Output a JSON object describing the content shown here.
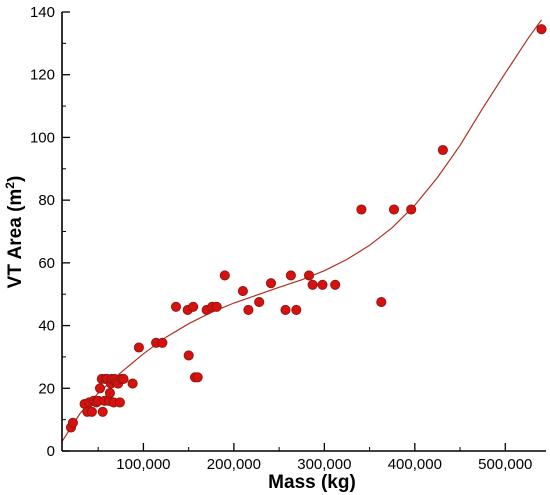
{
  "chart_data": {
    "type": "scatter",
    "xlabel": "Mass (kg)",
    "ylabel_main": "VT Area (m",
    "ylabel_sup": "2",
    "ylabel_close": ")",
    "xlim": [
      10000,
      545000
    ],
    "ylim": [
      0,
      140
    ],
    "xticks": [
      100000,
      200000,
      300000,
      400000,
      500000
    ],
    "xtick_labels": [
      "100,000",
      "200,000",
      "300,000",
      "400,000",
      "500,000"
    ],
    "yticks": [
      0,
      20,
      40,
      60,
      80,
      100,
      120,
      140
    ],
    "ytick_labels": [
      "0",
      "20",
      "40",
      "60",
      "80",
      "100",
      "120",
      "140"
    ],
    "grid": false,
    "colors": {
      "point_fill": "#d81010",
      "point_edge": "#8a1a10",
      "trend_line": "#b03020"
    },
    "series": [
      {
        "type": "scatter",
        "points": [
          [
            20000,
            7.5
          ],
          [
            22000,
            9
          ],
          [
            35000,
            15
          ],
          [
            38000,
            12.5
          ],
          [
            40000,
            15.5
          ],
          [
            43000,
            12.5
          ],
          [
            45000,
            16
          ],
          [
            48000,
            15.5
          ],
          [
            50000,
            16
          ],
          [
            52000,
            20
          ],
          [
            54000,
            23
          ],
          [
            55000,
            12.5
          ],
          [
            57000,
            16
          ],
          [
            58000,
            23
          ],
          [
            60000,
            23
          ],
          [
            62000,
            16
          ],
          [
            63000,
            18.5
          ],
          [
            64000,
            21.5
          ],
          [
            65000,
            23
          ],
          [
            67000,
            15.5
          ],
          [
            68000,
            23
          ],
          [
            70000,
            22
          ],
          [
            72000,
            21.5
          ],
          [
            74000,
            15.5
          ],
          [
            76000,
            23
          ],
          [
            78000,
            23
          ],
          [
            88000,
            21.5
          ],
          [
            95000,
            33
          ],
          [
            114000,
            34.5
          ],
          [
            121000,
            34.5
          ],
          [
            136000,
            46
          ],
          [
            149000,
            45
          ],
          [
            150000,
            30.5
          ],
          [
            155000,
            46
          ],
          [
            157000,
            23.5
          ],
          [
            160000,
            23.5
          ],
          [
            170000,
            45
          ],
          [
            176000,
            46
          ],
          [
            181000,
            46
          ],
          [
            190000,
            56
          ],
          [
            210000,
            51
          ],
          [
            216000,
            45
          ],
          [
            228000,
            47.5
          ],
          [
            241000,
            53.5
          ],
          [
            257000,
            45
          ],
          [
            263000,
            56
          ],
          [
            269000,
            45
          ],
          [
            283000,
            56
          ],
          [
            287000,
            53
          ],
          [
            298000,
            53
          ],
          [
            312000,
            53
          ],
          [
            341000,
            77
          ],
          [
            363000,
            47.5
          ],
          [
            377000,
            77
          ],
          [
            396000,
            77
          ],
          [
            431000,
            96
          ],
          [
            540000,
            134.5
          ]
        ]
      },
      {
        "type": "line",
        "points": [
          [
            10000,
            3
          ],
          [
            30000,
            12
          ],
          [
            50000,
            18.5
          ],
          [
            75000,
            25
          ],
          [
            100000,
            31
          ],
          [
            125000,
            36.3
          ],
          [
            150000,
            40.6
          ],
          [
            175000,
            44.2
          ],
          [
            200000,
            47.2
          ],
          [
            225000,
            49.7
          ],
          [
            250000,
            52.2
          ],
          [
            275000,
            54.6
          ],
          [
            300000,
            57.5
          ],
          [
            325000,
            61.1
          ],
          [
            350000,
            65.6
          ],
          [
            375000,
            71.2
          ],
          [
            400000,
            78.4
          ],
          [
            425000,
            87.2
          ],
          [
            450000,
            97.5
          ],
          [
            475000,
            109.3
          ],
          [
            500000,
            120.5
          ],
          [
            525000,
            131.5
          ],
          [
            540000,
            137.5
          ]
        ]
      }
    ]
  }
}
